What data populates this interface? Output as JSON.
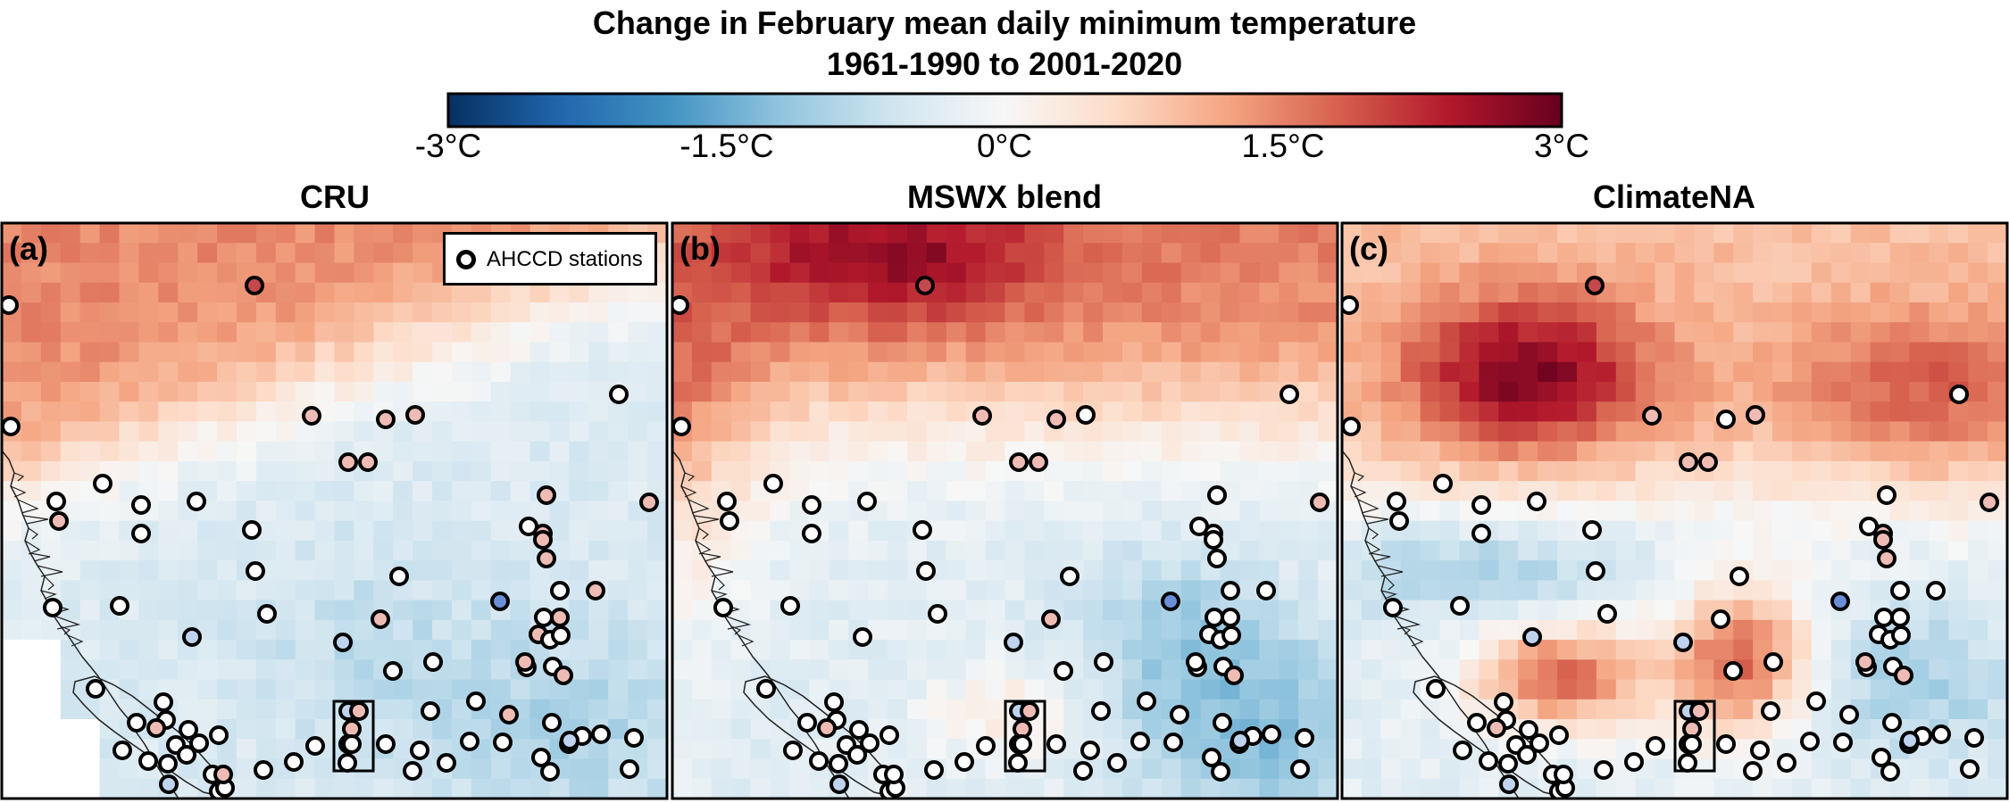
{
  "title": {
    "line1": "Change in February mean daily minimum temperature",
    "line2": "1961-1990 to 2001-2020"
  },
  "colorbar": {
    "ticks": [
      {
        "value": -3,
        "label": "-3°C"
      },
      {
        "value": -1.5,
        "label": "-1.5°C"
      },
      {
        "value": 0,
        "label": "0°C"
      },
      {
        "value": 1.5,
        "label": "1.5°C"
      },
      {
        "value": 3,
        "label": "3°C"
      }
    ],
    "colors": [
      "#053061",
      "#2166ac",
      "#4393c3",
      "#92c5de",
      "#d1e5f0",
      "#f7f7f7",
      "#fddbc7",
      "#f4a582",
      "#d6604d",
      "#b2182b",
      "#67001f"
    ],
    "range": [
      -3,
      3
    ]
  },
  "legend": {
    "label": "AHCCD stations"
  },
  "panels": [
    {
      "letter": "(a)",
      "title": "CRU"
    },
    {
      "letter": "(b)",
      "title": "MSWX blend"
    },
    {
      "letter": "(c)",
      "title": "ClimateNA"
    }
  ]
}
